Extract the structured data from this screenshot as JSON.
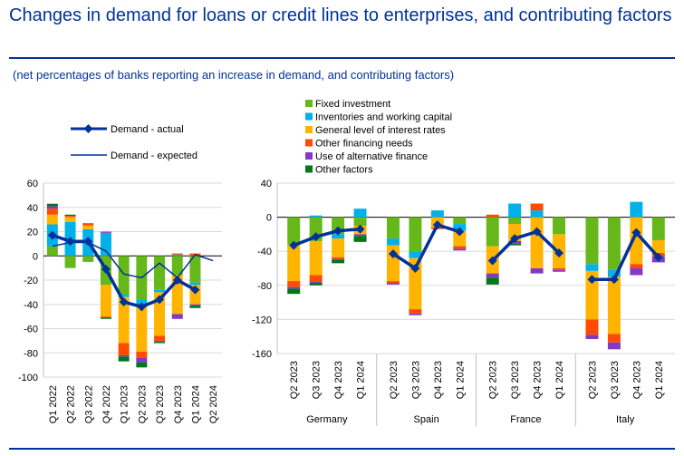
{
  "title": "Changes in demand for loans or credit lines to enterprises, and contributing factors",
  "subtitle": "(net percentages of banks reporting an increase in demand, and contributing factors)",
  "colors": {
    "fixed_investment": "#66b81a",
    "inventories": "#00b1ea",
    "interest_rates": "#ffb400",
    "other_financing": "#ff4b00",
    "alternative_finance": "#8139c6",
    "other_factors": "#007816",
    "demand_line": "#003299"
  },
  "chart_data": [
    {
      "type": "bar",
      "panel": "euro area",
      "categories": [
        "Q1 2022",
        "Q2 2022",
        "Q3 2022",
        "Q4 2022",
        "Q1 2023",
        "Q2 2023",
        "Q3 2023",
        "Q4 2023",
        "Q1 2024",
        "Q2 2024"
      ],
      "ylim": [
        -100,
        60
      ],
      "yticks": [
        60,
        40,
        20,
        0,
        -20,
        -40,
        -60,
        -80,
        -100
      ],
      "series": [
        {
          "name": "Fixed investment",
          "color_key": "fixed_investment",
          "values": [
            8,
            -10,
            -5,
            -24,
            -32,
            -36,
            -28,
            -16,
            -22,
            null
          ]
        },
        {
          "name": "Inventories and working capital",
          "color_key": "inventories",
          "values": [
            18,
            28,
            22,
            19,
            -2,
            -5,
            -2,
            1,
            -2,
            null
          ]
        },
        {
          "name": "General level of interest rates",
          "color_key": "interest_rates",
          "values": [
            8,
            4,
            3,
            -26,
            -38,
            -38,
            -36,
            -32,
            -16,
            null
          ]
        },
        {
          "name": "Other financing needs",
          "color_key": "other_financing",
          "values": [
            5,
            1,
            2,
            -1,
            -10,
            -5,
            -4,
            1,
            2,
            null
          ]
        },
        {
          "name": "Use of alternative finance",
          "color_key": "alternative_finance",
          "values": [
            2,
            0,
            0,
            1,
            -1,
            -4,
            -1,
            -4,
            -1,
            null
          ]
        },
        {
          "name": "Other factors",
          "color_key": "other_factors",
          "values": [
            2,
            1,
            0,
            -1,
            -4,
            -4,
            -1,
            0,
            -2,
            null
          ]
        }
      ],
      "lines": [
        {
          "name": "Demand - actual",
          "values": [
            17,
            12,
            12,
            -11,
            -38,
            -42,
            -36,
            -20,
            -28,
            null
          ]
        },
        {
          "name": "Demand - expected",
          "values": [
            8,
            11,
            11,
            4,
            -15,
            -18,
            -6,
            -18,
            1,
            -4
          ]
        }
      ]
    },
    {
      "type": "bar",
      "panel": "countries",
      "groups": [
        "Germany",
        "Spain",
        "France",
        "Italy"
      ],
      "categories": [
        "Q2 2023",
        "Q3 2023",
        "Q4 2023",
        "Q1 2024"
      ],
      "ylim": [
        -160,
        40
      ],
      "yticks": [
        40,
        0,
        -40,
        -80,
        -120,
        -160
      ],
      "groups_data": [
        {
          "series": [
            {
              "color_key": "fixed_investment",
              "values": [
                -33,
                -28,
                -20,
                -10
              ]
            },
            {
              "color_key": "inventories",
              "values": [
                0,
                2,
                -5,
                10
              ]
            },
            {
              "color_key": "interest_rates",
              "values": [
                -42,
                -40,
                -22,
                -10
              ]
            },
            {
              "color_key": "other_financing",
              "values": [
                -7,
                -8,
                -2,
                0
              ]
            },
            {
              "color_key": "alternative_finance",
              "values": [
                -2,
                -1,
                -1,
                -2
              ]
            },
            {
              "color_key": "other_factors",
              "values": [
                -6,
                -3,
                -4,
                -7
              ]
            }
          ],
          "actual": [
            -33,
            -23,
            -16,
            -14
          ]
        },
        {
          "series": [
            {
              "color_key": "fixed_investment",
              "values": [
                -25,
                -40,
                0,
                -8
              ]
            },
            {
              "color_key": "inventories",
              "values": [
                -8,
                -8,
                8,
                -8
              ]
            },
            {
              "color_key": "interest_rates",
              "values": [
                -42,
                -60,
                -12,
                -18
              ]
            },
            {
              "color_key": "other_financing",
              "values": [
                -2,
                -5,
                -2,
                -3
              ]
            },
            {
              "color_key": "alternative_finance",
              "values": [
                -2,
                -2,
                0,
                -2
              ]
            },
            {
              "color_key": "other_factors",
              "values": [
                0,
                0,
                0,
                0
              ]
            }
          ],
          "actual": [
            -43,
            -60,
            -9,
            -17
          ]
        },
        {
          "series": [
            {
              "color_key": "fixed_investment",
              "values": [
                -34,
                -8,
                0,
                -20
              ]
            },
            {
              "color_key": "inventories",
              "values": [
                0,
                16,
                8,
                0
              ]
            },
            {
              "color_key": "interest_rates",
              "values": [
                -32,
                -20,
                -60,
                -40
              ]
            },
            {
              "color_key": "other_financing",
              "values": [
                3,
                0,
                8,
                -2
              ]
            },
            {
              "color_key": "alternative_finance",
              "values": [
                -5,
                -3,
                -6,
                -2
              ]
            },
            {
              "color_key": "other_factors",
              "values": [
                -8,
                -2,
                0,
                0
              ]
            }
          ],
          "actual": [
            -51,
            -25,
            -17,
            -42
          ]
        },
        {
          "series": [
            {
              "color_key": "fixed_investment",
              "values": [
                -55,
                -62,
                0,
                -27
              ]
            },
            {
              "color_key": "inventories",
              "values": [
                -8,
                -8,
                18,
                0
              ]
            },
            {
              "color_key": "interest_rates",
              "values": [
                -57,
                -67,
                -55,
                -15
              ]
            },
            {
              "color_key": "other_financing",
              "values": [
                -18,
                -10,
                -5,
                -4
              ]
            },
            {
              "color_key": "alternative_finance",
              "values": [
                -5,
                -8,
                -8,
                -7
              ]
            },
            {
              "color_key": "other_factors",
              "values": [
                0,
                0,
                0,
                0
              ]
            }
          ],
          "actual": [
            -73,
            -73,
            -18,
            -47
          ]
        }
      ]
    }
  ],
  "legend": {
    "lines": [
      "Demand - actual",
      "Demand - expected"
    ],
    "bars": [
      "Fixed investment",
      "Inventories and working capital",
      "General level of interest rates",
      "Other financing needs",
      "Use of alternative finance",
      "Other factors"
    ]
  }
}
